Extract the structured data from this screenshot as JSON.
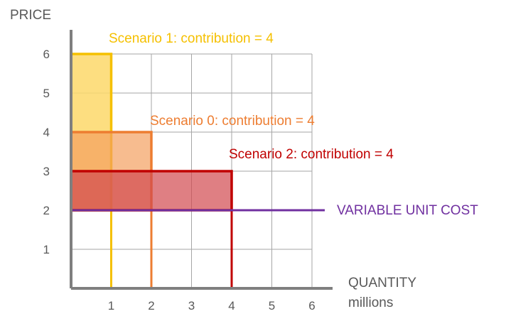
{
  "chart_data": {
    "type": "bar",
    "title": "",
    "ylabel": "PRICE",
    "xlabel": "QUANTITY",
    "xlabel_unit": "millions",
    "xlim": [
      0,
      6
    ],
    "ylim": [
      0,
      6
    ],
    "x_ticks": [
      "1",
      "2",
      "3",
      "4",
      "5",
      "6"
    ],
    "y_ticks": [
      "1",
      "2",
      "3",
      "4",
      "5",
      "6"
    ],
    "grid": true,
    "reference_line": {
      "label": "VARIABLE  UNIT COST",
      "y": 2,
      "color": "#7030a0"
    },
    "series": [
      {
        "label": "Scenario 1: contribution = 4",
        "quantity": 1,
        "price": 6,
        "unit_cost": 2,
        "contribution": 4,
        "color": "#f5c000",
        "fill": "#fdd86a"
      },
      {
        "label": "Scenario 0: contribution = 4",
        "quantity": 2,
        "price": 4,
        "unit_cost": 2,
        "contribution": 4,
        "color": "#ed7d31",
        "fill": "#f3a060"
      },
      {
        "label": "Scenario 2: contribution = 4",
        "quantity": 4,
        "price": 3,
        "unit_cost": 2,
        "contribution": 4,
        "color": "#c00000",
        "fill": "#d2484e"
      }
    ]
  }
}
